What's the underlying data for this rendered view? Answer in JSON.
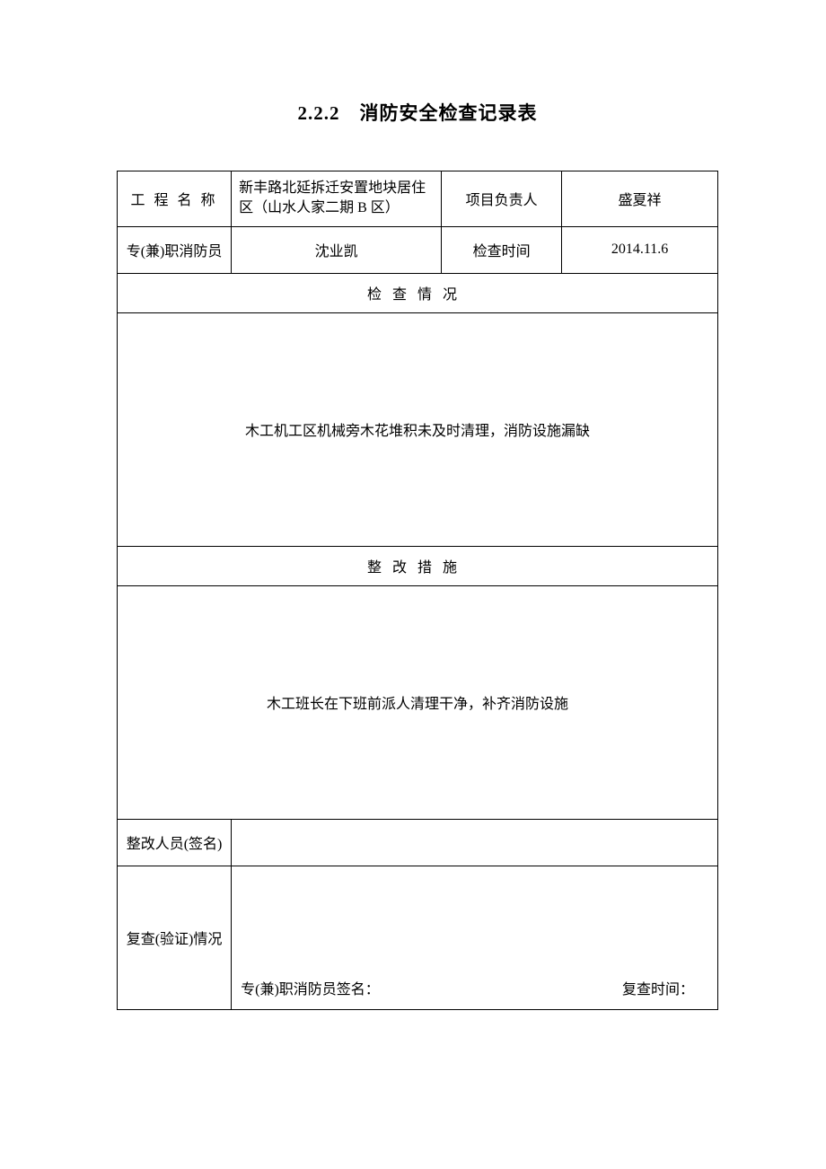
{
  "title": "2.2.2　消防安全检查记录表",
  "rows": {
    "project_name_label": "工 程 名 称",
    "project_name_value": "新丰路北延拆迁安置地块居住区（山水人家二期 B 区）",
    "project_leader_label": "项目负责人",
    "project_leader_value": "盛夏祥",
    "firefighter_label": "专(兼)职消防员",
    "firefighter_value": "沈业凯",
    "check_time_label": "检查时间",
    "check_time_value": "2014.11.6"
  },
  "sections": {
    "check_situation_header": "检查情况",
    "check_situation_content": "木工机工区机械旁木花堆积未及时清理，消防设施漏缺",
    "rectify_header": "整改措施",
    "rectify_content": "木工班长在下班前派人清理干净，补齐消防设施"
  },
  "signature": {
    "rectify_person_label": "整改人员(签名)",
    "rectify_person_value": "",
    "recheck_label": "复查(验证)情况",
    "firefighter_sign_label": "专(兼)职消防员签名：",
    "recheck_time_label": "复查时间："
  },
  "style": {
    "font_family": "SimSun",
    "border_color": "#000000",
    "background_color": "#ffffff",
    "text_color": "#000000",
    "title_fontsize": 21,
    "body_fontsize": 16
  }
}
